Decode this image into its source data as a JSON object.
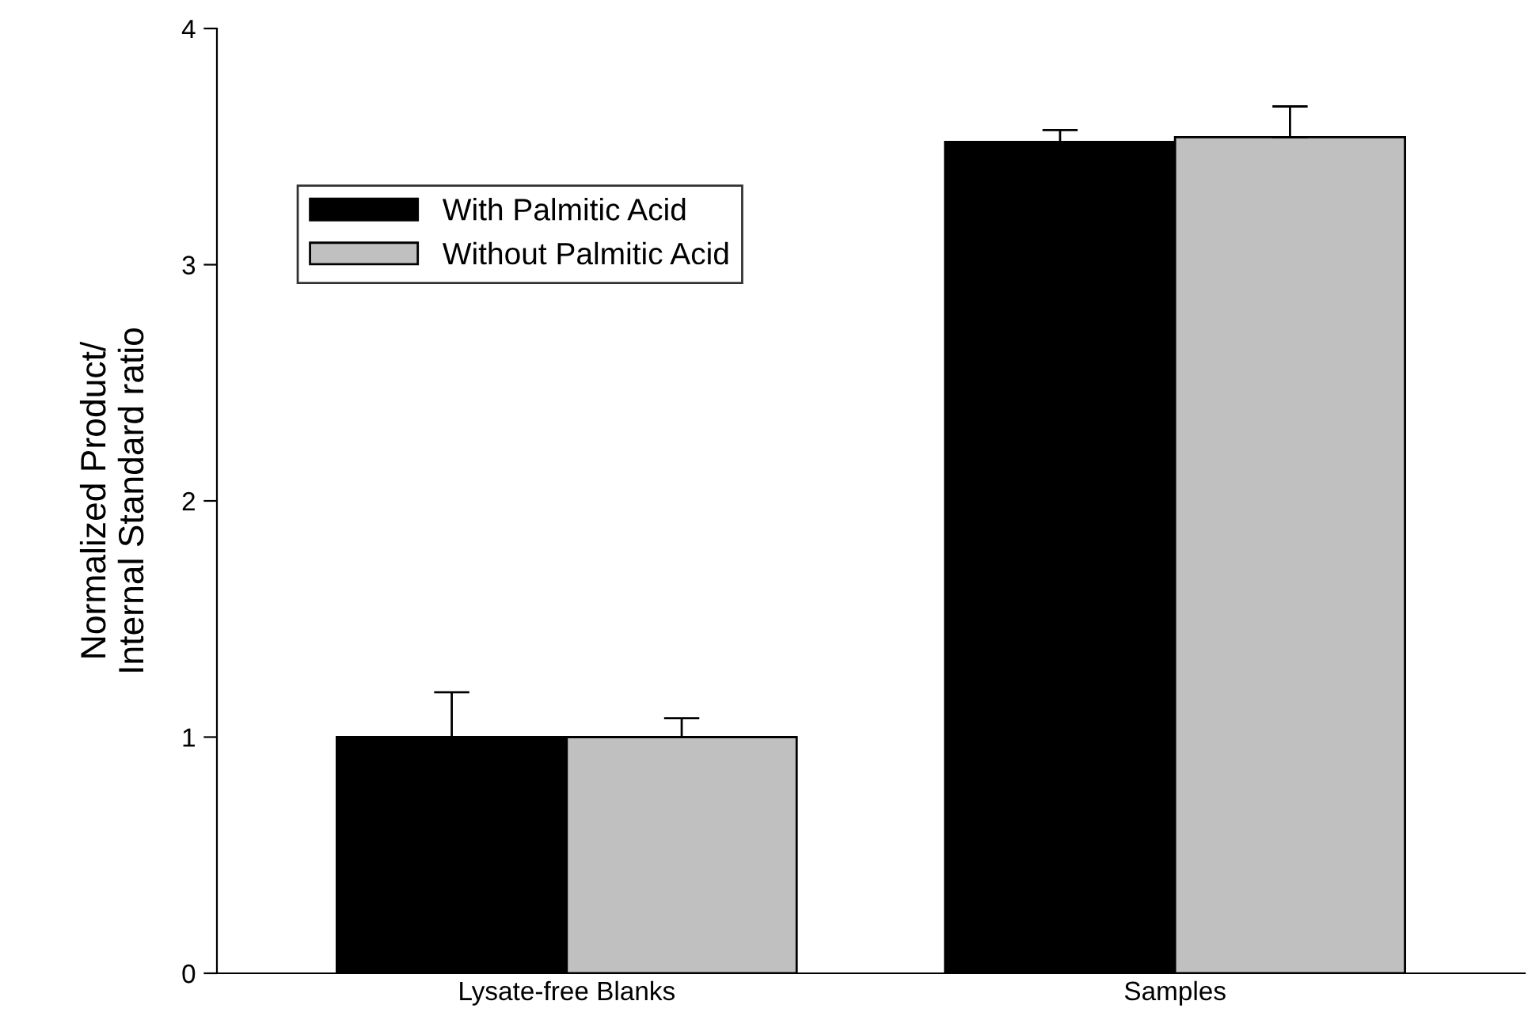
{
  "chart_data": {
    "type": "bar",
    "ylabel": "Normalized Product/\nInternal Standard ratio",
    "categories": [
      "Lysate-free Blanks",
      "Samples"
    ],
    "series": [
      {
        "name": "With Palmitic Acid",
        "color": "#000000",
        "values": [
          1.0,
          3.52
        ],
        "errors": [
          [
            1.0,
            1.19
          ],
          [
            3.52,
            3.57
          ]
        ]
      },
      {
        "name": "Without Palmitic Acid",
        "color": "#c0c0c0",
        "values": [
          1.0,
          3.54
        ],
        "errors": [
          [
            1.0,
            1.08
          ],
          [
            3.54,
            3.67
          ]
        ]
      }
    ],
    "ylim": [
      0,
      4
    ],
    "yticks": [
      0,
      1,
      2,
      3,
      4
    ],
    "grid": false,
    "legend": "top left"
  }
}
